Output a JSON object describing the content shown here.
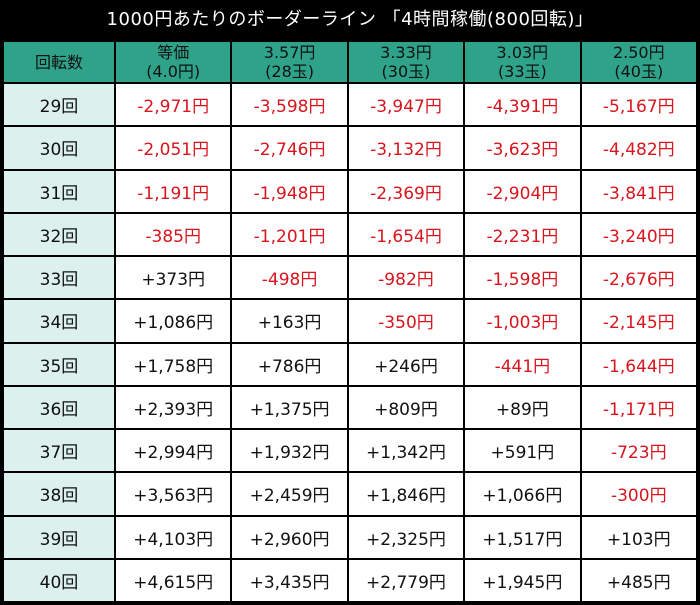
{
  "title": "1000円あたりのボーダーライン 「4時間稼働(800回転)」",
  "header": {
    "first": "回転数",
    "columns": [
      {
        "line1": "等価",
        "line2": "(4.0円)"
      },
      {
        "line1": "3.57円",
        "line2": "(28玉)"
      },
      {
        "line1": "3.33円",
        "line2": "(30玉)"
      },
      {
        "line1": "3.03円",
        "line2": "(33玉)"
      },
      {
        "line1": "2.50円",
        "line2": "(40玉)"
      }
    ]
  },
  "rows": [
    {
      "label": "29回",
      "cells": [
        "-2,971円",
        "-3,598円",
        "-3,947円",
        "-4,391円",
        "-5,167円"
      ]
    },
    {
      "label": "30回",
      "cells": [
        "-2,051円",
        "-2,746円",
        "-3,132円",
        "-3,623円",
        "-4,482円"
      ]
    },
    {
      "label": "31回",
      "cells": [
        "-1,191円",
        "-1,948円",
        "-2,369円",
        "-2,904円",
        "-3,841円"
      ]
    },
    {
      "label": "32回",
      "cells": [
        "-385円",
        "-1,201円",
        "-1,654円",
        "-2,231円",
        "-3,240円"
      ]
    },
    {
      "label": "33回",
      "cells": [
        "+373円",
        "-498円",
        "-982円",
        "-1,598円",
        "-2,676円"
      ]
    },
    {
      "label": "34回",
      "cells": [
        "+1,086円",
        "+163円",
        "-350円",
        "-1,003円",
        "-2,145円"
      ]
    },
    {
      "label": "35回",
      "cells": [
        "+1,758円",
        "+786円",
        "+246円",
        "-441円",
        "-1,644円"
      ]
    },
    {
      "label": "36回",
      "cells": [
        "+2,393円",
        "+1,375円",
        "+809円",
        "+89円",
        "-1,171円"
      ]
    },
    {
      "label": "37回",
      "cells": [
        "+2,994円",
        "+1,932円",
        "+1,342円",
        "+591円",
        "-723円"
      ]
    },
    {
      "label": "38回",
      "cells": [
        "+3,563円",
        "+2,459円",
        "+1,846円",
        "+1,066円",
        "-300円"
      ]
    },
    {
      "label": "39回",
      "cells": [
        "+4,103円",
        "+2,960円",
        "+2,325円",
        "+1,517円",
        "+103円"
      ]
    },
    {
      "label": "40回",
      "cells": [
        "+4,615円",
        "+3,435円",
        "+2,779円",
        "+1,945円",
        "+485円"
      ]
    }
  ],
  "colors": {
    "positive": "#111111",
    "negative": "#d8141c",
    "header_bg": "#2fa38a",
    "rowhead_bg": "#dcf0ee"
  }
}
